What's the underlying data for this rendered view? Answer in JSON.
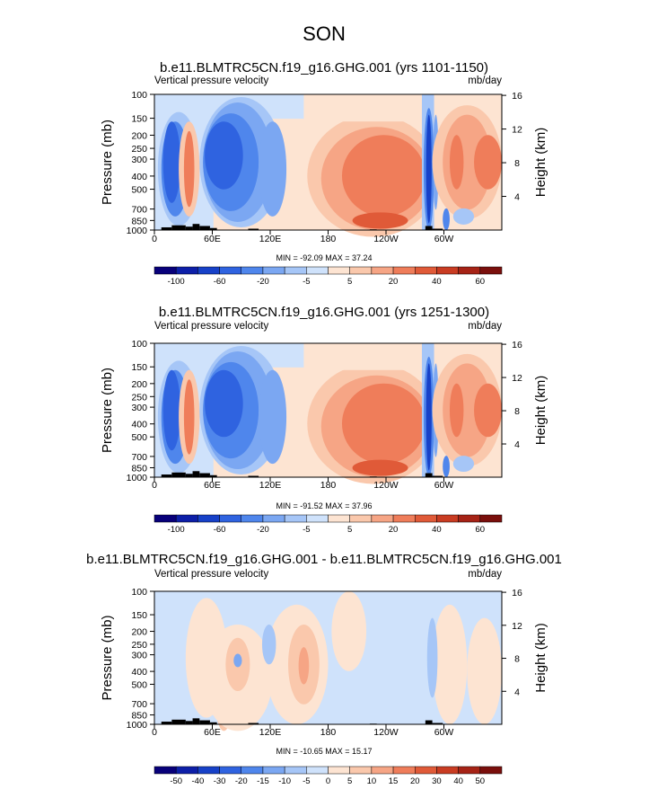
{
  "figure_title": "SON",
  "chart_data": [
    {
      "type": "heatmap",
      "title": "b.e11.BLMTRC5CN.f19_g16.GHG.001 (yrs 1101-1150)",
      "variable": "Vertical pressure velocity",
      "units": "mb/day",
      "ylabel": "Pressure (mb)",
      "ylabel_right": "Height (km)",
      "pressure_ticks": [
        "100",
        "150",
        "200",
        "250",
        "300",
        "400",
        "500",
        "700",
        "850",
        "1000"
      ],
      "height_ticks": [
        "4",
        "8",
        "12",
        "16"
      ],
      "lon_ticks": [
        "0",
        "60E",
        "120E",
        "180",
        "120W",
        "60W"
      ],
      "stats": "MIN = -92.09   MAX =  37.24",
      "colorbar_labels": [
        "-100",
        "-60",
        "-20",
        "-5",
        "5",
        "20",
        "40",
        "60"
      ]
    },
    {
      "type": "heatmap",
      "title": "b.e11.BLMTRC5CN.f19_g16.GHG.001 (yrs 1251-1300)",
      "variable": "Vertical pressure velocity",
      "units": "mb/day",
      "ylabel": "Pressure (mb)",
      "ylabel_right": "Height (km)",
      "pressure_ticks": [
        "100",
        "150",
        "200",
        "250",
        "300",
        "400",
        "500",
        "700",
        "850",
        "1000"
      ],
      "height_ticks": [
        "4",
        "8",
        "12",
        "16"
      ],
      "lon_ticks": [
        "0",
        "60E",
        "120E",
        "180",
        "120W",
        "60W"
      ],
      "stats": "MIN = -91.52   MAX =  37.96",
      "colorbar_labels": [
        "-100",
        "-60",
        "-20",
        "-5",
        "5",
        "20",
        "40",
        "60"
      ]
    },
    {
      "type": "heatmap",
      "title": "b.e11.BLMTRC5CN.f19_g16.GHG.001 - b.e11.BLMTRC5CN.f19_g16.GHG.001",
      "variable": "Vertical pressure velocity",
      "units": "mb/day",
      "ylabel": "Pressure (mb)",
      "ylabel_right": "Height (km)",
      "pressure_ticks": [
        "100",
        "150",
        "200",
        "250",
        "300",
        "400",
        "500",
        "700",
        "850",
        "1000"
      ],
      "height_ticks": [
        "4",
        "8",
        "12",
        "16"
      ],
      "lon_ticks": [
        "0",
        "60E",
        "120E",
        "180",
        "120W",
        "60W"
      ],
      "stats": "MIN = -10.65   MAX =  15.17",
      "colorbar_labels": [
        "-50",
        "-40",
        "-30",
        "-20",
        "-15",
        "-10",
        "-5",
        "0",
        "5",
        "10",
        "15",
        "20",
        "30",
        "40",
        "50"
      ]
    }
  ],
  "colors": {
    "colormap": [
      "#08007a",
      "#0d1fa8",
      "#1741c8",
      "#2f63e0",
      "#4f86ec",
      "#7ba7f2",
      "#a6c6f7",
      "#cfe2fb",
      "#fde4d2",
      "#fac8ac",
      "#f6a585",
      "#ef7d5a",
      "#e05a38",
      "#c93c22",
      "#a62316",
      "#7a0f0c"
    ],
    "topography": "#000000"
  }
}
